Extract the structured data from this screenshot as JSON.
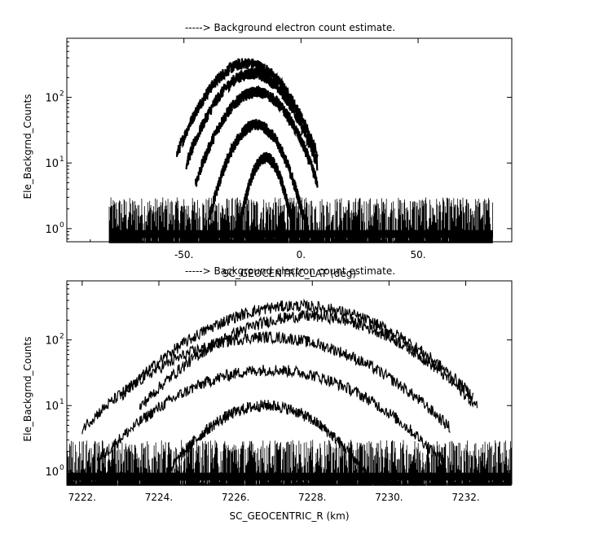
{
  "chart_data": [
    {
      "type": "scatter",
      "title": "-----> Background electron count estimate.",
      "xlabel": "SC_GEOCENTRIC_LAT (deg)",
      "ylabel": "Ele_Backgrnd_Counts",
      "xlim": [
        -100,
        90
      ],
      "ylim_log10": [
        -0.2,
        2.9
      ],
      "yscale": "log",
      "x_tick_labels": [
        "-50.",
        "0.",
        "50."
      ],
      "x_tick_values": [
        -50,
        0,
        50
      ],
      "y_tick_labels": [
        {
          "base": "10",
          "exp": "0"
        },
        {
          "base": "10",
          "exp": "1"
        },
        {
          "base": "10",
          "exp": "2"
        }
      ],
      "y_tick_values": [
        1,
        10,
        100
      ],
      "grid": false,
      "noise_floor": {
        "x_range": [
          -82,
          82
        ],
        "y_min": 0.6,
        "y_max": 3
      },
      "series": [
        {
          "center": -23,
          "half_width": 30,
          "peak": 330
        },
        {
          "center": -21,
          "half_width": 28,
          "peak": 230
        },
        {
          "center": -19,
          "half_width": 26,
          "peak": 120
        },
        {
          "center": -19,
          "half_width": 20,
          "peak": 38
        },
        {
          "center": -15,
          "half_width": 13,
          "peak": 12
        }
      ]
    },
    {
      "type": "scatter",
      "title": "-----> Background electron count estimate.",
      "xlabel": "SC_GEOCENTRIC_R (km)",
      "ylabel": "Ele_Backgrnd_Counts",
      "xlim": [
        7221.6,
        7233.2
      ],
      "ylim_log10": [
        -0.2,
        2.9
      ],
      "yscale": "log",
      "x_tick_labels": [
        "7222.",
        "7224.",
        "7226.",
        "7228.",
        "7230.",
        "7232."
      ],
      "x_tick_values": [
        7222,
        7224,
        7226,
        7228,
        7230,
        7232
      ],
      "y_tick_labels": [
        {
          "base": "10",
          "exp": "0"
        },
        {
          "base": "10",
          "exp": "1"
        },
        {
          "base": "10",
          "exp": "2"
        }
      ],
      "y_tick_values": [
        1,
        10,
        100
      ],
      "grid": false,
      "noise_floor": {
        "x_range": [
          7221.6,
          7233.2
        ],
        "y_min": 0.6,
        "y_max": 3
      },
      "series": [
        {
          "center": 7227.6,
          "half_width": 4.6,
          "peak": 330
        },
        {
          "center": 7227.9,
          "half_width": 4.4,
          "peak": 230
        },
        {
          "center": 7226.8,
          "half_width": 4.8,
          "peak": 110
        },
        {
          "center": 7226.9,
          "half_width": 4.5,
          "peak": 35
        },
        {
          "center": 7226.8,
          "half_width": 3.0,
          "peak": 10
        }
      ]
    }
  ]
}
